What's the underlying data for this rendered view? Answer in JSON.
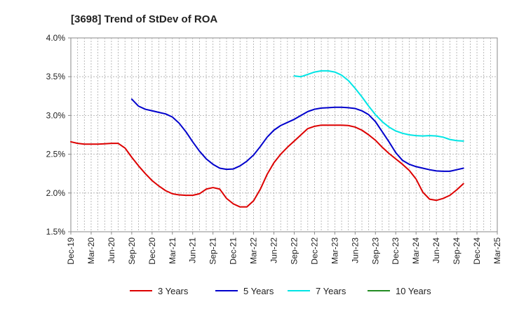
{
  "chart_data": {
    "type": "line",
    "title": "[3698]  Trend of StDev of ROA",
    "xlabel": "",
    "ylabel": "",
    "ylim": [
      1.5,
      4.0
    ],
    "y_ticks": [
      "1.5%",
      "2.0%",
      "2.5%",
      "3.0%",
      "3.5%",
      "4.0%"
    ],
    "y_tick_values": [
      1.5,
      2.0,
      2.5,
      3.0,
      3.5,
      4.0
    ],
    "x_tick_labels": [
      "Dec-19",
      "Mar-20",
      "Jun-20",
      "Sep-20",
      "Dec-20",
      "Mar-21",
      "Jun-21",
      "Sep-21",
      "Dec-21",
      "Mar-22",
      "Jun-22",
      "Sep-22",
      "Dec-22",
      "Mar-23",
      "Jun-23",
      "Sep-23",
      "Dec-23",
      "Mar-24",
      "Jun-24",
      "Sep-24",
      "Dec-24",
      "Mar-25"
    ],
    "x_unit": "month",
    "x_range_months": [
      0,
      63
    ],
    "grid": true,
    "legend_position": "bottom",
    "series": [
      {
        "name": "3 Years",
        "color": "#dd0000",
        "points": [
          [
            0,
            2.66
          ],
          [
            1,
            2.64
          ],
          [
            2,
            2.63
          ],
          [
            3,
            2.63
          ],
          [
            4,
            2.63
          ],
          [
            5,
            2.635
          ],
          [
            6,
            2.64
          ],
          [
            7,
            2.64
          ],
          [
            8,
            2.58
          ],
          [
            9,
            2.46
          ],
          [
            10,
            2.35
          ],
          [
            11,
            2.25
          ],
          [
            12,
            2.16
          ],
          [
            13,
            2.09
          ],
          [
            14,
            2.03
          ],
          [
            15,
            1.99
          ],
          [
            16,
            1.975
          ],
          [
            17,
            1.97
          ],
          [
            18,
            1.97
          ],
          [
            19,
            1.99
          ],
          [
            20,
            2.05
          ],
          [
            21,
            2.07
          ],
          [
            22,
            2.05
          ],
          [
            23,
            1.93
          ],
          [
            24,
            1.86
          ],
          [
            25,
            1.82
          ],
          [
            26,
            1.82
          ],
          [
            27,
            1.9
          ],
          [
            28,
            2.05
          ],
          [
            29,
            2.24
          ],
          [
            30,
            2.39
          ],
          [
            31,
            2.5
          ],
          [
            32,
            2.59
          ],
          [
            33,
            2.67
          ],
          [
            34,
            2.75
          ],
          [
            35,
            2.83
          ],
          [
            36,
            2.86
          ],
          [
            37,
            2.875
          ],
          [
            38,
            2.875
          ],
          [
            39,
            2.875
          ],
          [
            40,
            2.875
          ],
          [
            41,
            2.87
          ],
          [
            42,
            2.85
          ],
          [
            43,
            2.81
          ],
          [
            44,
            2.75
          ],
          [
            45,
            2.68
          ],
          [
            46,
            2.59
          ],
          [
            47,
            2.51
          ],
          [
            48,
            2.44
          ],
          [
            49,
            2.37
          ],
          [
            50,
            2.29
          ],
          [
            51,
            2.18
          ],
          [
            52,
            2.01
          ],
          [
            53,
            1.92
          ],
          [
            54,
            1.905
          ],
          [
            55,
            1.93
          ],
          [
            56,
            1.97
          ],
          [
            57,
            2.04
          ],
          [
            58,
            2.12
          ]
        ]
      },
      {
        "name": "5 Years",
        "color": "#0000cc",
        "points": [
          [
            9,
            3.21
          ],
          [
            10,
            3.12
          ],
          [
            11,
            3.08
          ],
          [
            12,
            3.06
          ],
          [
            13,
            3.04
          ],
          [
            14,
            3.02
          ],
          [
            15,
            2.98
          ],
          [
            16,
            2.9
          ],
          [
            17,
            2.79
          ],
          [
            18,
            2.66
          ],
          [
            19,
            2.54
          ],
          [
            20,
            2.44
          ],
          [
            21,
            2.37
          ],
          [
            22,
            2.32
          ],
          [
            23,
            2.305
          ],
          [
            24,
            2.31
          ],
          [
            25,
            2.35
          ],
          [
            26,
            2.41
          ],
          [
            27,
            2.49
          ],
          [
            28,
            2.6
          ],
          [
            29,
            2.72
          ],
          [
            30,
            2.81
          ],
          [
            31,
            2.87
          ],
          [
            32,
            2.91
          ],
          [
            33,
            2.95
          ],
          [
            34,
            3.0
          ],
          [
            35,
            3.05
          ],
          [
            36,
            3.08
          ],
          [
            37,
            3.095
          ],
          [
            38,
            3.1
          ],
          [
            39,
            3.105
          ],
          [
            40,
            3.105
          ],
          [
            41,
            3.1
          ],
          [
            42,
            3.09
          ],
          [
            43,
            3.06
          ],
          [
            44,
            3.01
          ],
          [
            45,
            2.92
          ],
          [
            46,
            2.79
          ],
          [
            47,
            2.66
          ],
          [
            48,
            2.52
          ],
          [
            49,
            2.42
          ],
          [
            50,
            2.37
          ],
          [
            51,
            2.34
          ],
          [
            52,
            2.32
          ],
          [
            53,
            2.3
          ],
          [
            54,
            2.285
          ],
          [
            55,
            2.28
          ],
          [
            56,
            2.28
          ],
          [
            57,
            2.3
          ],
          [
            58,
            2.32
          ]
        ]
      },
      {
        "name": "7 Years",
        "color": "#00e5e5",
        "points": [
          [
            33,
            3.51
          ],
          [
            34,
            3.5
          ],
          [
            35,
            3.53
          ],
          [
            36,
            3.56
          ],
          [
            37,
            3.575
          ],
          [
            38,
            3.575
          ],
          [
            39,
            3.56
          ],
          [
            40,
            3.52
          ],
          [
            41,
            3.45
          ],
          [
            42,
            3.35
          ],
          [
            43,
            3.24
          ],
          [
            44,
            3.12
          ],
          [
            45,
            3.01
          ],
          [
            46,
            2.92
          ],
          [
            47,
            2.85
          ],
          [
            48,
            2.8
          ],
          [
            49,
            2.77
          ],
          [
            50,
            2.75
          ],
          [
            51,
            2.74
          ],
          [
            52,
            2.735
          ],
          [
            53,
            2.74
          ],
          [
            54,
            2.735
          ],
          [
            55,
            2.72
          ],
          [
            56,
            2.69
          ],
          [
            57,
            2.675
          ],
          [
            58,
            2.67
          ]
        ]
      },
      {
        "name": "10 Years",
        "color": "#228b22",
        "points": []
      }
    ]
  }
}
